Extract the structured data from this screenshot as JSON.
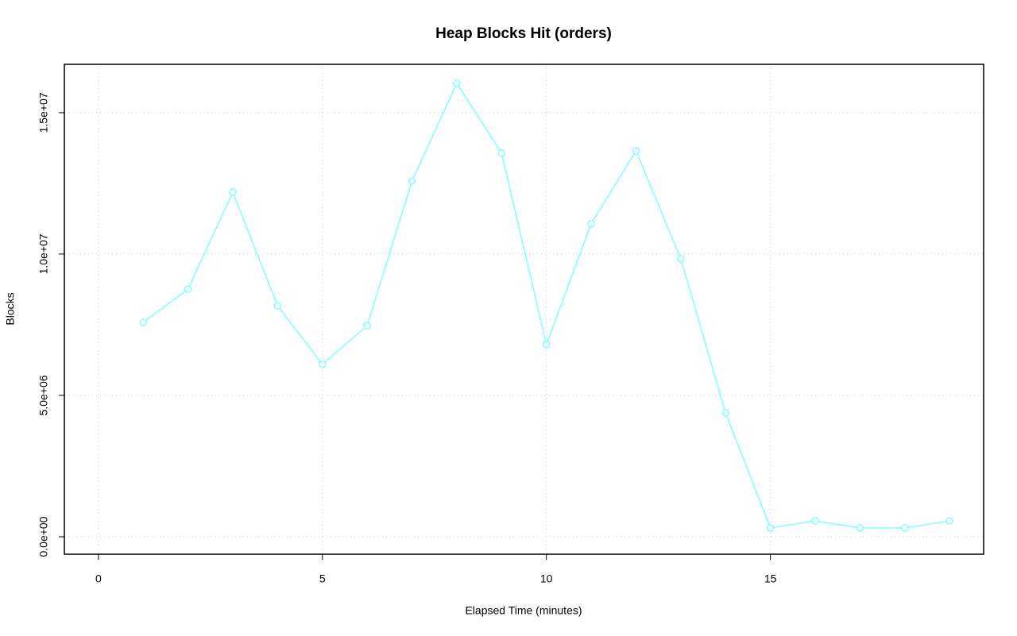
{
  "chart_data": {
    "type": "line",
    "title": "Heap Blocks Hit (orders)",
    "x_label": "Elapsed Time (minutes)",
    "y_label": "Blocks",
    "x": [
      1,
      2,
      3,
      4,
      5,
      6,
      7,
      8,
      9,
      10,
      11,
      12,
      13,
      14,
      15,
      16,
      17,
      18,
      19
    ],
    "series": [
      {
        "color": "#7fffff",
        "values": [
          7580000,
          8760000,
          12190000,
          8170000,
          6100000,
          7470000,
          12580000,
          16040000,
          13570000,
          6800000,
          11070000,
          13650000,
          9830000,
          4380000,
          310000,
          560000,
          310000,
          310000,
          560000
        ]
      }
    ],
    "xlim": [
      -0.76,
      19.76
    ],
    "xticks": [
      0,
      5,
      10,
      15
    ],
    "ylim": [
      -618000,
      16710000
    ],
    "yticks": [
      {
        "value": 0,
        "label": "0.0e+00"
      },
      {
        "value": 5000000,
        "label": "5.0e+06"
      },
      {
        "value": 10000000,
        "label": "1.0e+07"
      },
      {
        "value": 15000000,
        "label": "1.5e+07"
      }
    ],
    "grid": true
  }
}
